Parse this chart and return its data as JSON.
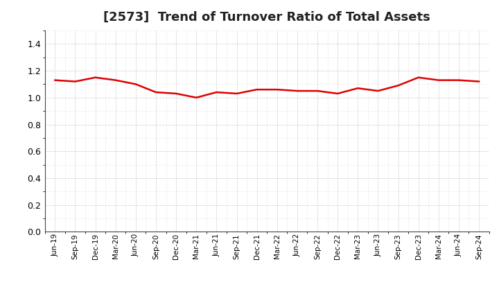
{
  "title": "[2573]  Trend of Turnover Ratio of Total Assets",
  "title_fontsize": 13,
  "line_color": "#dd0000",
  "line_width": 1.8,
  "background_color": "#ffffff",
  "grid_color": "#999999",
  "ylim": [
    0.0,
    1.5
  ],
  "yticks": [
    0.0,
    0.2,
    0.4,
    0.6,
    0.8,
    1.0,
    1.2,
    1.4
  ],
  "x_labels": [
    "Jun-19",
    "Sep-19",
    "Dec-19",
    "Mar-20",
    "Jun-20",
    "Sep-20",
    "Dec-20",
    "Mar-21",
    "Jun-21",
    "Sep-21",
    "Dec-21",
    "Mar-22",
    "Jun-22",
    "Sep-22",
    "Dec-22",
    "Mar-23",
    "Jun-23",
    "Sep-23",
    "Dec-23",
    "Mar-24",
    "Jun-24",
    "Sep-24"
  ],
  "values": [
    1.13,
    1.12,
    1.15,
    1.13,
    1.1,
    1.04,
    1.03,
    1.0,
    1.04,
    1.03,
    1.06,
    1.06,
    1.05,
    1.05,
    1.03,
    1.07,
    1.05,
    1.09,
    1.15,
    1.13,
    1.13,
    1.12
  ]
}
